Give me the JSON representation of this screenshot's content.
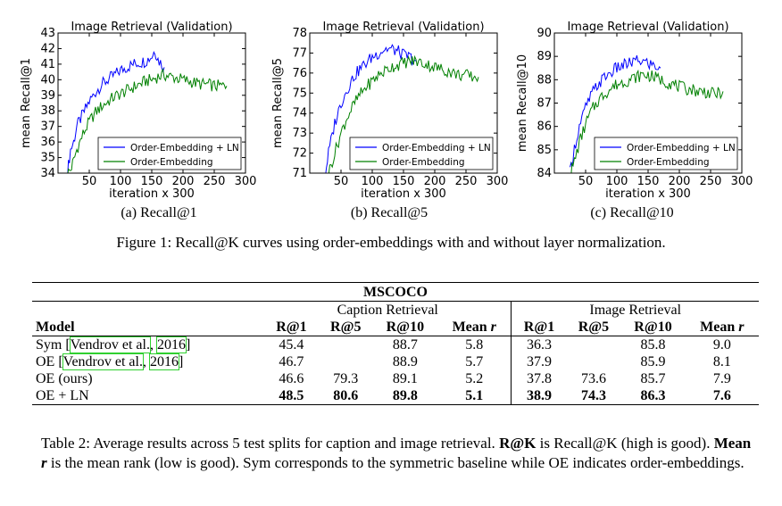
{
  "chart_data": [
    {
      "type": "line",
      "title": "Image Retrieval (Validation)",
      "xlabel": "iteration x 300",
      "ylabel": "mean Recall@1",
      "xlim": [
        0,
        300
      ],
      "ylim": [
        34,
        43
      ],
      "xticks": [
        "50",
        "100",
        "150",
        "200",
        "250",
        "300"
      ],
      "yticks": [
        "34",
        "35",
        "36",
        "37",
        "38",
        "39",
        "40",
        "41",
        "42",
        "43"
      ],
      "legend": "lower-right",
      "series": [
        {
          "name": "Order-Embedding + LN",
          "color": "#0000ff",
          "x": [
            15,
            20,
            25,
            30,
            40,
            50,
            60,
            70,
            80,
            90,
            100,
            110,
            120,
            130,
            140,
            150,
            155,
            160,
            170
          ],
          "y": [
            34.0,
            35.5,
            36.0,
            37.0,
            37.8,
            38.6,
            39.2,
            39.7,
            40.0,
            40.3,
            40.6,
            40.8,
            41.0,
            41.1,
            41.2,
            41.5,
            41.9,
            41.3,
            40.8
          ]
        },
        {
          "name": "Order-Embedding",
          "color": "#008000",
          "x": [
            15,
            20,
            25,
            30,
            40,
            50,
            60,
            70,
            80,
            90,
            100,
            110,
            120,
            130,
            140,
            150,
            160,
            170,
            180,
            190,
            200,
            210,
            220,
            230,
            240,
            250,
            260,
            270
          ],
          "y": [
            34.0,
            34.2,
            34.8,
            35.5,
            36.5,
            37.3,
            37.9,
            38.3,
            38.6,
            38.9,
            39.1,
            39.3,
            39.5,
            39.7,
            39.9,
            40.0,
            40.2,
            40.3,
            40.2,
            40.1,
            40.0,
            39.9,
            39.8,
            39.7,
            39.7,
            39.6,
            39.6,
            39.6
          ]
        }
      ]
    },
    {
      "type": "line",
      "title": "Image Retrieval (Validation)",
      "xlabel": "iteration x 300",
      "ylabel": "mean Recall@5",
      "xlim": [
        0,
        300
      ],
      "ylim": [
        71,
        78
      ],
      "xticks": [
        "50",
        "100",
        "150",
        "200",
        "250",
        "300"
      ],
      "yticks": [
        "71",
        "72",
        "73",
        "74",
        "75",
        "76",
        "77",
        "78"
      ],
      "legend": "lower-right",
      "series": [
        {
          "name": "Order-Embedding + LN",
          "color": "#0000ff",
          "x": [
            25,
            30,
            40,
            50,
            60,
            70,
            80,
            90,
            100,
            110,
            120,
            130,
            140,
            150,
            160,
            170
          ],
          "y": [
            71.0,
            72.0,
            73.5,
            74.5,
            75.2,
            75.8,
            76.2,
            76.5,
            76.8,
            77.0,
            77.2,
            77.2,
            77.1,
            76.9,
            76.8,
            76.6
          ]
        },
        {
          "name": "Order-Embedding",
          "color": "#008000",
          "x": [
            30,
            40,
            50,
            60,
            70,
            80,
            90,
            100,
            110,
            120,
            130,
            140,
            150,
            160,
            170,
            180,
            190,
            200,
            210,
            220,
            230,
            240,
            250,
            260,
            270
          ],
          "y": [
            71.0,
            72.0,
            73.0,
            73.8,
            74.4,
            74.9,
            75.3,
            75.6,
            75.9,
            76.1,
            76.3,
            76.4,
            76.5,
            76.6,
            76.6,
            76.5,
            76.4,
            76.3,
            76.2,
            76.1,
            76.0,
            75.9,
            75.9,
            75.8,
            75.8
          ]
        }
      ]
    },
    {
      "type": "line",
      "title": "Image Retrieval (Validation)",
      "xlabel": "iteration x 300",
      "ylabel": "mean Recall@10",
      "xlim": [
        0,
        300
      ],
      "ylim": [
        84,
        90
      ],
      "xticks": [
        "50",
        "100",
        "150",
        "200",
        "250",
        "300"
      ],
      "yticks": [
        "84",
        "85",
        "86",
        "87",
        "88",
        "89",
        "90"
      ],
      "legend": "lower-right",
      "series": [
        {
          "name": "Order-Embedding + LN",
          "color": "#0000ff",
          "x": [
            25,
            30,
            40,
            50,
            60,
            70,
            80,
            90,
            100,
            110,
            120,
            130,
            140,
            150,
            160,
            170
          ],
          "y": [
            84.0,
            84.8,
            86.0,
            86.8,
            87.4,
            87.8,
            88.1,
            88.3,
            88.5,
            88.6,
            88.7,
            88.8,
            88.8,
            88.7,
            88.6,
            88.5
          ]
        },
        {
          "name": "Order-Embedding",
          "color": "#008000",
          "x": [
            25,
            30,
            40,
            50,
            60,
            70,
            80,
            90,
            100,
            110,
            120,
            130,
            140,
            150,
            160,
            170,
            180,
            190,
            200,
            210,
            220,
            230,
            240,
            250,
            260,
            270
          ],
          "y": [
            84.0,
            84.3,
            85.3,
            86.1,
            86.7,
            87.1,
            87.4,
            87.6,
            87.8,
            87.9,
            88.0,
            88.1,
            88.2,
            88.2,
            88.1,
            88.0,
            87.9,
            87.8,
            87.7,
            87.6,
            87.6,
            87.5,
            87.5,
            87.4,
            87.4,
            87.5
          ]
        }
      ]
    }
  ],
  "figure": {
    "subcaptions": [
      "(a) Recall@1",
      "(b) Recall@5",
      "(c) Recall@10"
    ],
    "caption": "Figure 1: Recall@K curves using order-embeddings with and without layer normalization."
  },
  "table": {
    "dataset": "MSCOCO",
    "group_caption": "Caption Retrieval",
    "group_image": "Image Retrieval",
    "col_model": "Model",
    "cols": [
      "R@1",
      "R@5",
      "R@10",
      "Mean r",
      "R@1",
      "R@5",
      "R@10",
      "Mean r"
    ],
    "rows": [
      {
        "model": "Sym",
        "cite_a": "Vendrov et al.",
        "cite_b": "2016",
        "vals": [
          "45.4",
          "",
          "88.7",
          "5.8",
          "36.3",
          "",
          "85.8",
          "9.0"
        ]
      },
      {
        "model": "OE",
        "cite_a": "Vendrov et al.",
        "cite_b": "2016",
        "vals": [
          "46.7",
          "",
          "88.9",
          "5.7",
          "37.9",
          "",
          "85.9",
          "8.1"
        ]
      },
      {
        "model": "OE (ours)",
        "vals": [
          "46.6",
          "79.3",
          "89.1",
          "5.2",
          "37.8",
          "73.6",
          "85.7",
          "7.9"
        ]
      },
      {
        "model": "OE + LN",
        "vals": [
          "48.5",
          "80.6",
          "89.8",
          "5.1",
          "38.9",
          "74.3",
          "86.3",
          "7.6"
        ]
      }
    ],
    "caption_parts": [
      "Table 2: Average results across 5 test splits for caption and image retrieval. ",
      "R@K",
      " is Recall@K (high is good). ",
      "Mean r",
      " is the mean rank (low is good). Sym corresponds to the symmetric baseline while OE indicates order-embeddings."
    ]
  }
}
